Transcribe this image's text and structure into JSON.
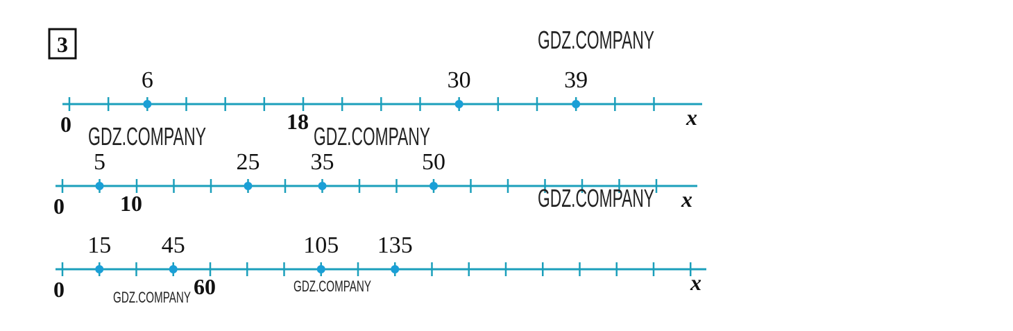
{
  "problem_number": "3",
  "number_lines": [
    {
      "origin": 0,
      "reference": 18,
      "points": [
        6,
        30,
        39
      ],
      "axis_label": "x"
    },
    {
      "origin": 0,
      "reference": 10,
      "points": [
        5,
        25,
        35,
        50
      ],
      "axis_label": "x"
    },
    {
      "origin": 0,
      "reference": 60,
      "points": [
        15,
        45,
        105,
        135
      ],
      "axis_label": "x"
    }
  ],
  "watermarks": [
    "GDZ.COMPANY",
    "GDZ.COMPANY",
    "GDZ.COMPANY",
    "GDZ.COMPANY",
    "GDZ.COMPANY",
    "GDZ.COMPANY"
  ]
}
